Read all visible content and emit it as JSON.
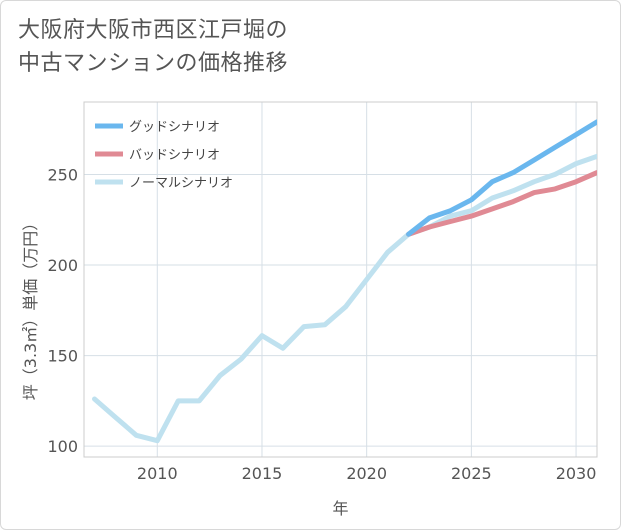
{
  "chart_data": {
    "type": "line",
    "title": "大阪府大阪市西区江戸堀の中古マンションの価格推移",
    "title_lines": [
      "大阪府大阪市西区江戸堀の",
      "中古マンションの価格推移"
    ],
    "xlabel": "年",
    "ylabel": "坪（3.3㎡）単価（万円）",
    "xlim": [
      2006.5,
      2031
    ],
    "ylim": [
      94,
      290
    ],
    "xticks": [
      2010,
      2015,
      2020,
      2025,
      2030
    ],
    "yticks": [
      100,
      150,
      200,
      250
    ],
    "legend_position": "top-left",
    "series": [
      {
        "name": "グッドシナリオ",
        "color": "#6ab7ee",
        "x": [
          2022,
          2023,
          2024,
          2025,
          2026,
          2027,
          2028,
          2029,
          2030,
          2031
        ],
        "values": [
          217,
          226,
          230,
          236,
          246,
          251,
          258,
          265,
          272,
          279
        ]
      },
      {
        "name": "バッドシナリオ",
        "color": "#e08a94",
        "x": [
          2022,
          2023,
          2024,
          2025,
          2026,
          2027,
          2028,
          2029,
          2030,
          2031
        ],
        "values": [
          217,
          221,
          224,
          227,
          231,
          235,
          240,
          242,
          246,
          251
        ]
      },
      {
        "name": "ノーマルシナリオ",
        "color": "#bfe1ef",
        "x": [
          2007,
          2008,
          2009,
          2010,
          2011,
          2012,
          2013,
          2014,
          2015,
          2016,
          2017,
          2018,
          2019,
          2020,
          2021,
          2022,
          2023,
          2024,
          2025,
          2026,
          2027,
          2028,
          2029,
          2030,
          2031
        ],
        "values": [
          126,
          116,
          106,
          103,
          125,
          125,
          139,
          148,
          161,
          154,
          166,
          167,
          177,
          192,
          207,
          217,
          221,
          227,
          230,
          237,
          241,
          246,
          250,
          256,
          260
        ]
      }
    ]
  }
}
